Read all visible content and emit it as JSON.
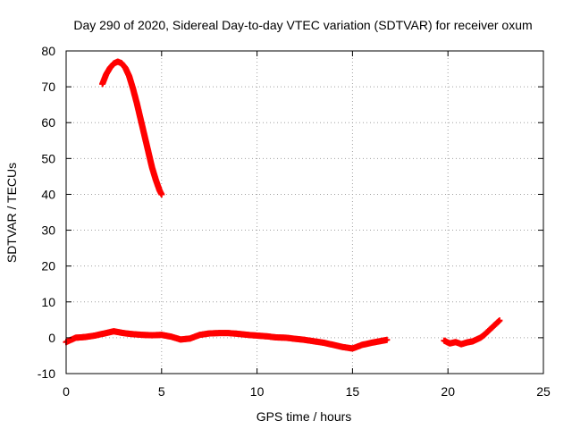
{
  "chart_data": {
    "type": "scatter",
    "title": "Day 290 of 2020, Sidereal Day-to-day VTEC variation (SDTVAR) for receiver oxum",
    "xlabel": "GPS time / hours",
    "ylabel": "SDTVAR / TECUs",
    "xlim": [
      0,
      25
    ],
    "ylim": [
      -10,
      80
    ],
    "xticks": [
      "0",
      "5",
      "10",
      "15",
      "20",
      "25"
    ],
    "yticks": [
      "-10",
      "0",
      "10",
      "20",
      "30",
      "40",
      "50",
      "60",
      "70",
      "80"
    ],
    "grid": true,
    "marker_color": "#ff0000",
    "series": [
      {
        "name": "SDTVAR",
        "x": [
          1.9,
          2.1,
          2.3,
          2.5,
          2.7,
          2.9,
          3.1,
          3.3,
          3.5,
          3.7,
          3.9,
          4.1,
          4.3,
          4.5,
          4.7,
          4.9,
          5.0
        ],
        "y": [
          70.8,
          73.5,
          75.3,
          76.5,
          77.0,
          76.6,
          75.3,
          73.0,
          69.5,
          65.5,
          61.0,
          56.5,
          52.0,
          47.5,
          44.0,
          41.0,
          40.0
        ]
      },
      {
        "name": "SDTVAR",
        "x": [
          0.0,
          0.5,
          1.0,
          1.5,
          2.0,
          2.5,
          3.0,
          3.5,
          4.0,
          4.5,
          5.0,
          5.5,
          6.0,
          6.5,
          7.0,
          7.5,
          8.0,
          8.5,
          9.0,
          9.5,
          10.0,
          10.5,
          11.0,
          11.5,
          12.0,
          12.5,
          13.0,
          13.5,
          14.0,
          14.5,
          15.0,
          15.5,
          16.0,
          16.5,
          16.8
        ],
        "y": [
          -1.2,
          0.0,
          0.2,
          0.6,
          1.2,
          1.8,
          1.3,
          1.0,
          0.8,
          0.7,
          0.8,
          0.3,
          -0.5,
          -0.2,
          0.8,
          1.2,
          1.3,
          1.3,
          1.1,
          0.8,
          0.6,
          0.4,
          0.1,
          0.0,
          -0.3,
          -0.6,
          -1.0,
          -1.4,
          -2.0,
          -2.6,
          -3.0,
          -2.0,
          -1.4,
          -0.9,
          -0.6
        ]
      },
      {
        "name": "SDTVAR",
        "x": [
          19.8,
          20.1,
          20.4,
          20.7,
          21.0,
          21.3,
          21.5,
          21.7,
          21.9,
          22.1,
          22.3,
          22.5,
          22.7
        ],
        "y": [
          -0.8,
          -1.6,
          -1.2,
          -1.8,
          -1.3,
          -1.0,
          -0.5,
          0.0,
          0.8,
          1.8,
          2.8,
          3.8,
          4.8
        ]
      }
    ]
  }
}
